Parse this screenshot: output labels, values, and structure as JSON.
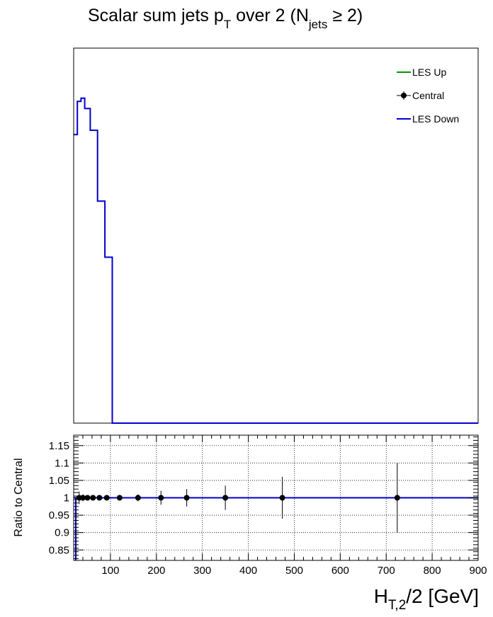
{
  "chart_data": [
    {
      "type": "histogram",
      "title_parts": {
        "pre": "Scalar sum jets p",
        "sub1": "T",
        "mid": " over 2 (N",
        "sub2": "jets",
        "post": " ≥ 2)"
      },
      "xlim": [
        20,
        900
      ],
      "log_y": true,
      "legend": {
        "placement": "top-right",
        "entries": [
          {
            "label": "LES Up",
            "color": "#009900",
            "marker": "line"
          },
          {
            "label": "Central",
            "color": "#000000",
            "marker": "point-errorbar"
          },
          {
            "label": "LES Down",
            "color": "#0000cc",
            "marker": "line"
          }
        ]
      },
      "series": [
        {
          "name": "LES Down",
          "color": "#0000cc",
          "bin_edges": [
            20,
            28,
            36,
            44,
            56,
            72,
            88,
            104,
            900
          ],
          "values": [
            1,
            2.9,
            3.2,
            2.3,
            1.15,
            0.12,
            0.02,
            0.0001
          ]
        }
      ]
    },
    {
      "type": "scatter",
      "ylabel": "Ratio to Central",
      "xlabel_parts": {
        "pre": "H",
        "sub": "T,2",
        "post": "/2 [GeV]"
      },
      "xlim": [
        20,
        900
      ],
      "ylim": [
        0.82,
        1.18
      ],
      "grid": true,
      "x_ticks": [
        100,
        200,
        300,
        400,
        500,
        600,
        700,
        800,
        900
      ],
      "x_tick_labels": [
        "100",
        "200",
        "300",
        "400",
        "500",
        "600",
        "700",
        "800",
        "900"
      ],
      "y_ticks": [
        0.85,
        0.9,
        0.95,
        1,
        1.05,
        1.1,
        1.15
      ],
      "y_tick_labels": [
        "0.85",
        "0.9",
        "0.95",
        "1",
        "1.05",
        "1.1",
        "1.15"
      ],
      "series": [
        {
          "name": "Central",
          "color": "#000000",
          "x": [
            32,
            40,
            50,
            62,
            76,
            92,
            120,
            160,
            210,
            266,
            350,
            474,
            724
          ],
          "y": [
            1,
            1,
            1,
            1,
            1,
            1,
            1,
            1,
            1,
            1,
            1,
            1,
            1
          ],
          "yerr": [
            0.018,
            0.01,
            0.005,
            0.005,
            0.004,
            0.004,
            0.006,
            0.01,
            0.02,
            0.025,
            0.035,
            0.06,
            0.1
          ]
        },
        {
          "name": "LES Down",
          "color": "#0000cc",
          "x": [
            20,
            900
          ],
          "y": [
            1,
            1
          ]
        }
      ]
    }
  ]
}
